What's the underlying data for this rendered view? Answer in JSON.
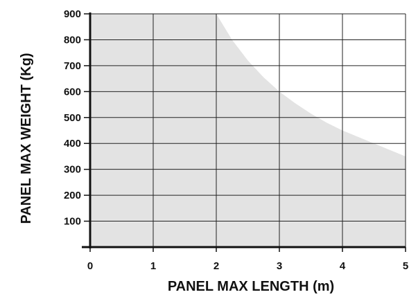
{
  "chart_data": {
    "type": "area",
    "title": "",
    "xlabel": "PANEL MAX LENGTH (m)",
    "ylabel": "PANEL MAX WEIGHT (Kg)",
    "xlim": [
      0,
      5
    ],
    "ylim": [
      0,
      900
    ],
    "x_ticks": [
      "0",
      "1",
      "2",
      "3",
      "4",
      "5"
    ],
    "y_ticks": [
      "100",
      "200",
      "300",
      "400",
      "500",
      "600",
      "700",
      "800",
      "900"
    ],
    "grid": true,
    "legend": "none",
    "series": [
      {
        "x": [
          0,
          1,
          2,
          2.25,
          2.5,
          2.75,
          3,
          3.25,
          3.5,
          3.75,
          4,
          4.25,
          4.5,
          4.75,
          5
        ],
        "values": [
          900,
          900,
          900,
          800,
          720,
          655,
          600,
          555,
          515,
          480,
          450,
          425,
          400,
          375,
          350
        ]
      }
    ],
    "colors": {
      "fill": "#e3e3e3",
      "grid": "#222222",
      "axis": "#111111"
    }
  }
}
